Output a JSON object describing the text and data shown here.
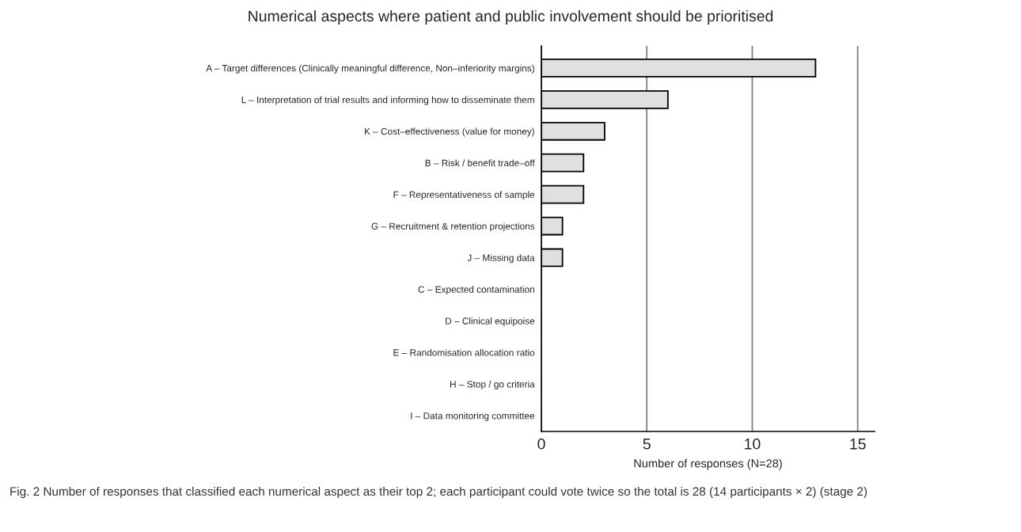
{
  "chart_data": {
    "type": "bar",
    "orientation": "horizontal",
    "title": "Numerical aspects where patient and public involvement should be prioritised",
    "xlabel": "Number of responses (N=28)",
    "categories": [
      "A – Target differences (Clinically meaningful difference, Non–inferiority margins)",
      "L – Interpretation of trial results and informing how to disseminate them",
      "K – Cost–effectiveness (value for money)",
      "B – Risk / benefit trade–off",
      "F – Representativeness of sample",
      "G – Recruitment & retention projections",
      "J – Missing data",
      "C – Expected contamination",
      "D – Clinical equipoise",
      "E – Randomisation allocation ratio",
      "H – Stop / go criteria",
      "I – Data monitoring committee"
    ],
    "values": [
      13,
      6,
      3,
      2,
      2,
      1,
      1,
      0,
      0,
      0,
      0,
      0
    ],
    "color": "#e0e0e0",
    "xlim": [
      0,
      15.8
    ],
    "xticks": [
      0,
      5,
      10,
      15
    ],
    "grid": "x",
    "annotations": [
      "Fig. 2 Number of responses that classified each numerical aspect as their top 2; each participant could vote twice so the total is 28 (14 participants × 2) (stage 2)"
    ]
  }
}
